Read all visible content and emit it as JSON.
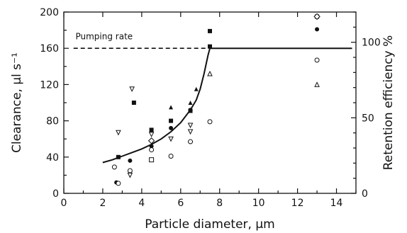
{
  "chart_data": {
    "type": "scatter",
    "xlabel": "Particle diameter, µm",
    "ylabel": "Clearance, µl s⁻¹",
    "y2label": "Retention efficiency %",
    "xlim": [
      0,
      15
    ],
    "ylim": [
      0,
      200
    ],
    "y2lim": [
      0,
      120
    ],
    "xticks": [
      0,
      2,
      4,
      6,
      8,
      10,
      12,
      14
    ],
    "yticks": [
      0,
      40,
      80,
      120,
      160,
      200
    ],
    "y2ticks": [
      0,
      50,
      100
    ],
    "grid": false,
    "annotations": [
      {
        "text": "Pumping rate",
        "x": 0.6,
        "y": 170
      }
    ],
    "reference_line": {
      "y": 160,
      "x": [
        0.5,
        7.4
      ],
      "style": "dashed"
    },
    "fitted_curve": {
      "x": [
        2.0,
        2.5,
        3.0,
        3.5,
        4.0,
        4.5,
        5.0,
        5.5,
        6.0,
        6.5,
        6.8,
        7.0,
        7.2,
        7.4,
        7.5,
        8.0,
        10.0,
        12.0,
        14.0,
        14.8
      ],
      "y": [
        34,
        37,
        41,
        45,
        49,
        54,
        60,
        68,
        78,
        92,
        103,
        115,
        132,
        152,
        160,
        160,
        160,
        160,
        160,
        160
      ]
    },
    "series": [
      {
        "marker": "filled-circle",
        "points": [
          [
            2.7,
            12
          ],
          [
            3.4,
            36
          ],
          [
            4.5,
            52
          ],
          [
            5.5,
            72
          ],
          [
            6.5,
            92
          ],
          [
            13.0,
            181
          ]
        ]
      },
      {
        "marker": "open-circle",
        "points": [
          [
            2.6,
            29
          ],
          [
            2.8,
            11
          ],
          [
            3.4,
            25
          ],
          [
            4.5,
            48
          ],
          [
            5.5,
            41
          ],
          [
            6.5,
            57
          ],
          [
            7.5,
            79
          ],
          [
            13.0,
            147
          ]
        ]
      },
      {
        "marker": "filled-square",
        "points": [
          [
            2.8,
            40
          ],
          [
            3.6,
            100
          ],
          [
            4.5,
            70
          ],
          [
            5.5,
            80
          ],
          [
            6.5,
            91
          ],
          [
            7.5,
            162
          ],
          [
            7.5,
            179
          ],
          [
            13.0,
            195
          ]
        ]
      },
      {
        "marker": "open-triangle-down",
        "points": [
          [
            2.8,
            67
          ],
          [
            3.5,
            115
          ],
          [
            3.4,
            20
          ],
          [
            4.5,
            65
          ],
          [
            5.5,
            60
          ],
          [
            6.5,
            75
          ],
          [
            6.5,
            68
          ]
        ]
      },
      {
        "marker": "filled-triangle",
        "points": [
          [
            5.5,
            95
          ],
          [
            6.8,
            115
          ],
          [
            6.5,
            100
          ]
        ]
      },
      {
        "marker": "open-triangle",
        "points": [
          [
            7.5,
            132
          ],
          [
            13.0,
            120
          ]
        ]
      },
      {
        "marker": "open-square",
        "points": [
          [
            4.5,
            37
          ]
        ]
      },
      {
        "marker": "open-diamond",
        "points": [
          [
            4.5,
            58
          ],
          [
            13.0,
            195
          ]
        ]
      }
    ]
  }
}
